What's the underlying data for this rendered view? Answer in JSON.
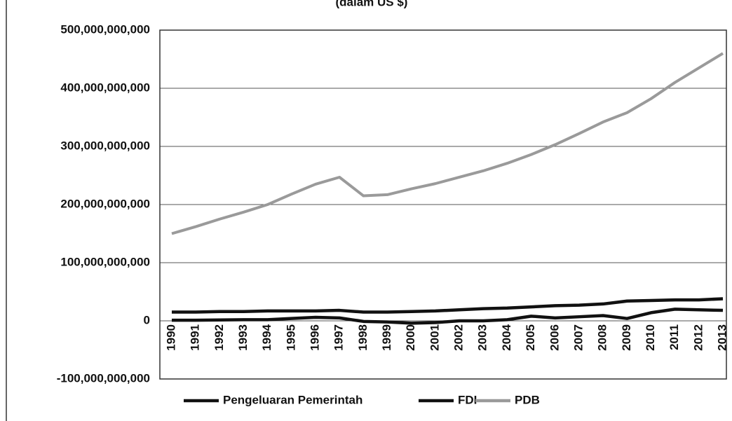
{
  "chart_data": {
    "type": "line",
    "subtitle": "(dalam US $)",
    "categories": [
      "1990",
      "1991",
      "1992",
      "1993",
      "1994",
      "1995",
      "1996",
      "1997",
      "1998",
      "1999",
      "2000",
      "2001",
      "2002",
      "2003",
      "2004",
      "2005",
      "2006",
      "2007",
      "2008",
      "2009",
      "2010",
      "2011",
      "2012",
      "2013"
    ],
    "series": [
      {
        "name": "Pengeluaran Pemerintah",
        "color": "#111111",
        "values": [
          15000000000,
          15000000000,
          16000000000,
          16000000000,
          17000000000,
          17000000000,
          17000000000,
          18000000000,
          15000000000,
          15000000000,
          16000000000,
          17000000000,
          19000000000,
          21000000000,
          22000000000,
          24000000000,
          26000000000,
          27000000000,
          29000000000,
          34000000000,
          35000000000,
          36000000000,
          36000000000,
          38000000000
        ]
      },
      {
        "name": "FDI",
        "color": "#111111",
        "values": [
          1000000000,
          1000000000,
          1500000000,
          2000000000,
          2000000000,
          4000000000,
          6000000000,
          5000000000,
          -1000000000,
          -2000000000,
          -4000000000,
          -3000000000,
          0,
          0,
          2000000000,
          8000000000,
          5000000000,
          7000000000,
          9000000000,
          4000000000,
          14000000000,
          20000000000,
          19000000000,
          18000000000
        ]
      },
      {
        "name": "PDB",
        "color": "#9a9a9a",
        "values": [
          150000000000,
          162000000000,
          175000000000,
          187000000000,
          200000000000,
          218000000000,
          235000000000,
          247000000000,
          215000000000,
          217000000000,
          227000000000,
          236000000000,
          247000000000,
          258000000000,
          271000000000,
          286000000000,
          303000000000,
          322000000000,
          342000000000,
          358000000000,
          382000000000,
          410000000000,
          435000000000,
          460000000000
        ]
      }
    ],
    "ylim": [
      -100000000000,
      500000000000
    ],
    "yticks": [
      {
        "value": -100000000000,
        "label": "-100,000,000,000"
      },
      0,
      {
        "value": 100000000000,
        "label": "100,000,000,000"
      },
      {
        "value": 200000000000,
        "label": "200,000,000,000"
      },
      {
        "value": 300000000000,
        "label": "300,000,000,000"
      },
      {
        "value": 400000000000,
        "label": "400,000,000,000"
      },
      {
        "value": 500000000000,
        "label": "500,000,000,000"
      }
    ],
    "grid": true,
    "legend": "bottom"
  }
}
